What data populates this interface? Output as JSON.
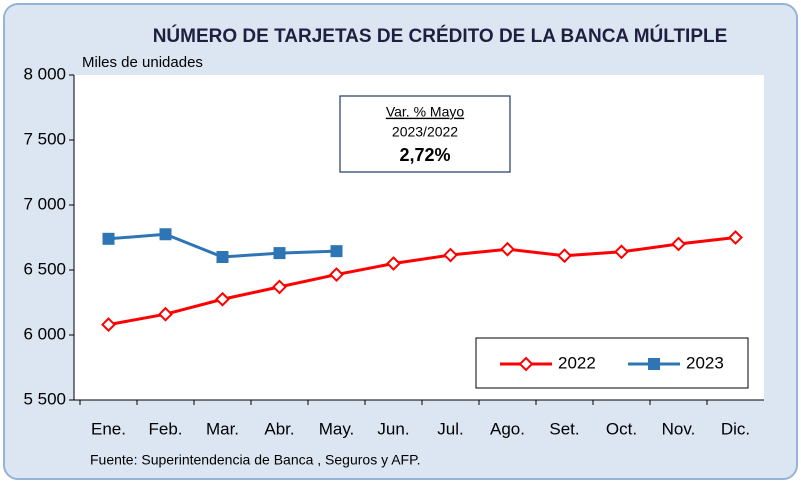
{
  "chart_data": {
    "type": "line",
    "title": "NÚMERO DE TARJETAS DE CRÉDITO DE LA BANCA MÚLTIPLE",
    "y_label": "Miles de unidades",
    "source": "Fuente: Superintendencia de Banca , Seguros y AFP.",
    "annotation": {
      "line1": "Var. % Mayo",
      "line2": "2023/2022",
      "line3": "2,72%"
    },
    "categories": [
      "Ene.",
      "Feb.",
      "Mar.",
      "Abr.",
      "May.",
      "Jun.",
      "Jul.",
      "Ago.",
      "Set.",
      "Oct.",
      "Nov.",
      "Dic."
    ],
    "series": [
      {
        "name": "2022",
        "color": "#ff0000",
        "marker": "diamond",
        "values": [
          6080,
          6160,
          6275,
          6370,
          6465,
          6550,
          6615,
          6660,
          6610,
          6640,
          6700,
          6750
        ]
      },
      {
        "name": "2023",
        "color": "#2e75b6",
        "marker": "square",
        "values": [
          6740,
          6775,
          6600,
          6630,
          6645,
          null,
          null,
          null,
          null,
          null,
          null,
          null
        ]
      }
    ],
    "ylim": [
      5500,
      8000
    ],
    "yticks": [
      {
        "value": 5500,
        "label": "5 500"
      },
      {
        "value": 6000,
        "label": "6 000"
      },
      {
        "value": 6500,
        "label": "6 500"
      },
      {
        "value": 7000,
        "label": "7 000"
      },
      {
        "value": 7500,
        "label": "7 500"
      },
      {
        "value": 8000,
        "label": "8 000"
      }
    ],
    "legend": "lower right",
    "grid": false
  }
}
